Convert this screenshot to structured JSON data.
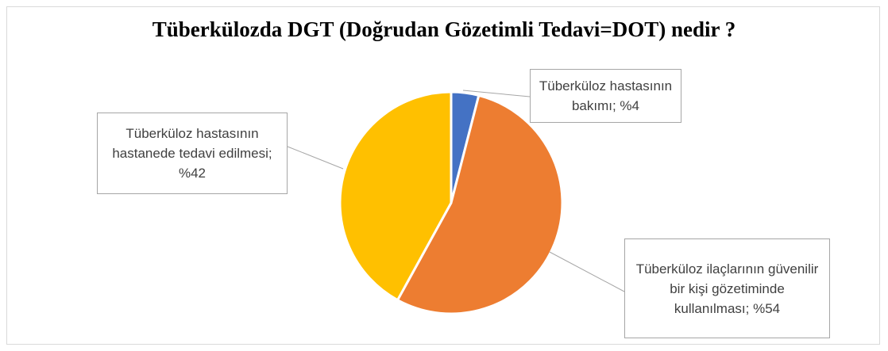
{
  "chart_data": {
    "type": "pie",
    "title": "Tüberkülozda DGT (Doğrudan Gözetimli Tedavi=DOT) nedir ?",
    "values": [
      4,
      54,
      42
    ],
    "value_labels": [
      "Tüberküloz hastasının bakımı; %4",
      "Tüberküloz ilaçlarının güvenilir bir kişi gözetiminde kullanılması; %54",
      "Tüberküloz hastasının hastanede tedavi edilmesi; %42"
    ],
    "colors": [
      "#4472c4",
      "#ed7d31",
      "#ffc000"
    ]
  }
}
